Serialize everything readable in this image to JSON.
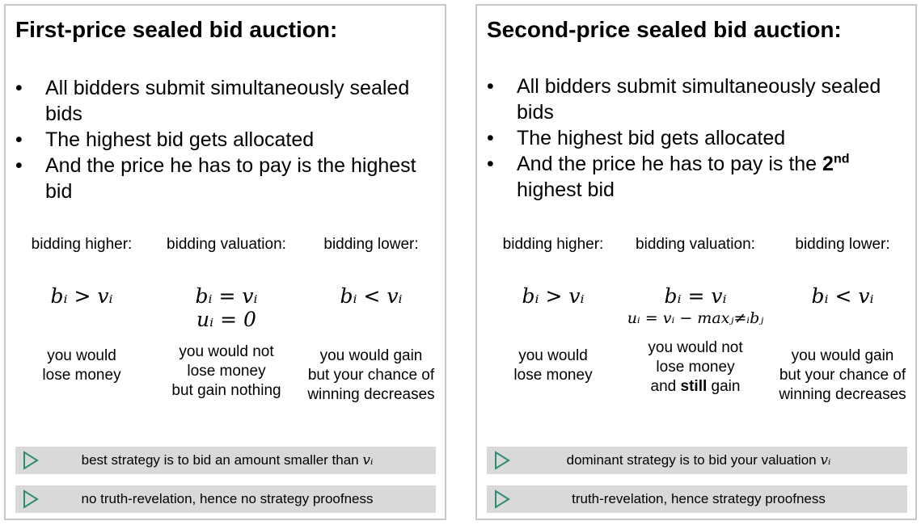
{
  "left": {
    "title": "First-price sealed bid auction:",
    "bullets": [
      "All bidders submit simultaneously sealed bids",
      "The highest bid gets allocated",
      "And the price he has to pay is the highest bid"
    ],
    "columns": [
      {
        "label": "bidding higher:",
        "formula": "bᵢ > vᵢ",
        "desc": [
          "you would",
          "lose money"
        ]
      },
      {
        "label": "bidding valuation:",
        "formula": "bᵢ = vᵢ",
        "formula2": "uᵢ = 0",
        "desc": [
          "you would not",
          "lose money",
          "but gain nothing"
        ]
      },
      {
        "label": "bidding lower:",
        "formula": "bᵢ < vᵢ",
        "desc": [
          "you would gain",
          "but your chance of",
          "winning decreases"
        ]
      }
    ],
    "bars": [
      {
        "text": "best strategy is to bid an amount smaller than",
        "var": "vᵢ"
      },
      {
        "text": "no truth-revelation, hence no strategy proofness"
      }
    ]
  },
  "right": {
    "title": "Second-price sealed bid auction:",
    "bullets": [
      "All bidders submit simultaneously sealed bids",
      "The highest bid gets allocated",
      "And the price he has to pay is the"
    ],
    "bullet3_ord_num": "2",
    "bullet3_ord_sup": "nd",
    "bullet3_tail": "highest bid",
    "columns": [
      {
        "label": "bidding higher:",
        "formula": "bᵢ > vᵢ",
        "desc": [
          "you would",
          "lose money"
        ]
      },
      {
        "label": "bidding valuation:",
        "formula": "bᵢ = vᵢ",
        "formula2": "uᵢ = vᵢ − maxⱼ≠ᵢbⱼ",
        "desc_l1": "you would not",
        "desc_l2": "lose money",
        "desc_l3a": "and ",
        "desc_l3b": "still",
        "desc_l3c": " gain"
      },
      {
        "label": "bidding lower:",
        "formula": "bᵢ < vᵢ",
        "desc": [
          "you would gain",
          "but your chance of",
          "winning decreases"
        ]
      }
    ],
    "bars": [
      {
        "text": "dominant strategy is to bid your valuation",
        "var": "vᵢ"
      },
      {
        "text": "truth-revelation, hence strategy proofness"
      }
    ]
  },
  "icons": {
    "bar_marker": "play-triangle-icon",
    "bullet": "bullet-dot"
  },
  "colors": {
    "bar_bg": "#d9d9d9",
    "border": "#c7c7c7",
    "triangle": "#2e8b74"
  }
}
